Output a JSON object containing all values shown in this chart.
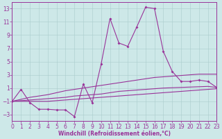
{
  "bg_color": "#cde8e8",
  "grid_color": "#aacccc",
  "line_color": "#993399",
  "xlabel": "Windchill (Refroidissement éolien,°C)",
  "xlim": [
    0,
    23
  ],
  "ylim": [
    -4,
    14
  ],
  "xticks": [
    0,
    1,
    2,
    3,
    4,
    5,
    6,
    7,
    8,
    9,
    10,
    11,
    12,
    13,
    14,
    15,
    16,
    17,
    18,
    19,
    20,
    21,
    22,
    23
  ],
  "yticks": [
    -3,
    -1,
    1,
    3,
    5,
    7,
    9,
    11,
    13
  ],
  "line_main_x": [
    0,
    1,
    2,
    3,
    4,
    5,
    6,
    7,
    8,
    9,
    10,
    11,
    12,
    13,
    14,
    15,
    16,
    17,
    18,
    19,
    20,
    21,
    22,
    23
  ],
  "line_main_y": [
    -1.0,
    0.8,
    -1.2,
    -2.2,
    -2.2,
    -2.3,
    -2.3,
    -3.3,
    1.6,
    -1.2,
    4.6,
    11.5,
    7.8,
    7.3,
    10.2,
    13.2,
    13.0,
    6.5,
    3.5,
    2.0,
    2.0,
    2.2,
    2.0,
    1.1
  ],
  "line_up_x": [
    0,
    1,
    2,
    3,
    4,
    5,
    6,
    7,
    8,
    9,
    10,
    11,
    12,
    13,
    14,
    15,
    16,
    17,
    18,
    19,
    20,
    21,
    22,
    23
  ],
  "line_up_y": [
    -1.0,
    -0.7,
    -0.4,
    -0.2,
    0.0,
    0.3,
    0.6,
    0.8,
    1.0,
    1.2,
    1.4,
    1.6,
    1.8,
    2.0,
    2.2,
    2.4,
    2.6,
    2.7,
    2.8,
    2.9,
    3.0,
    3.1,
    3.1,
    3.1
  ],
  "line_mid_x": [
    0,
    1,
    2,
    3,
    4,
    5,
    6,
    7,
    8,
    9,
    10,
    11,
    12,
    13,
    14,
    15,
    16,
    17,
    18,
    19,
    20,
    21,
    22,
    23
  ],
  "line_mid_y": [
    -1.0,
    -0.9,
    -0.8,
    -0.7,
    -0.6,
    -0.5,
    -0.4,
    -0.2,
    -0.1,
    0.0,
    0.1,
    0.3,
    0.5,
    0.6,
    0.7,
    0.8,
    0.9,
    1.0,
    1.05,
    1.1,
    1.15,
    1.2,
    1.25,
    1.1
  ],
  "line_lo_x": [
    0,
    1,
    2,
    3,
    4,
    5,
    6,
    7,
    8,
    9,
    10,
    11,
    12,
    13,
    14,
    15,
    16,
    17,
    18,
    19,
    20,
    21,
    22,
    23
  ],
  "line_lo_y": [
    -1.0,
    -1.0,
    -1.0,
    -1.0,
    -1.0,
    -0.9,
    -0.8,
    -0.7,
    -0.6,
    -0.5,
    -0.4,
    -0.3,
    -0.2,
    -0.1,
    0.0,
    0.1,
    0.2,
    0.3,
    0.4,
    0.5,
    0.6,
    0.7,
    0.8,
    0.9
  ]
}
